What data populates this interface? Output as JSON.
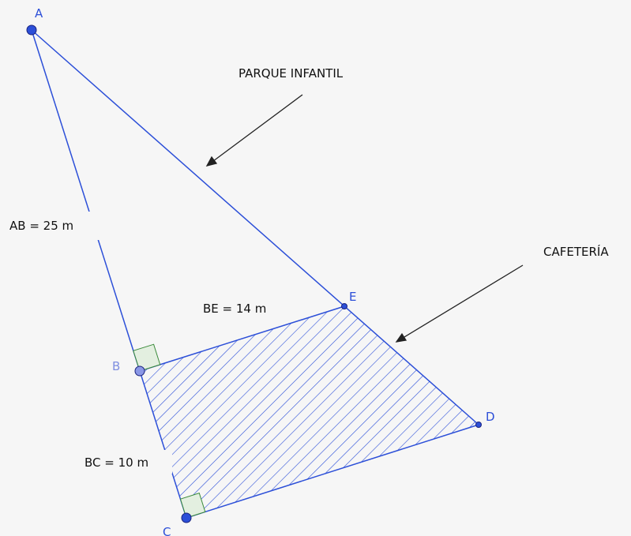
{
  "points": {
    "A": "A",
    "B": "B",
    "C": "C",
    "D": "D",
    "E": "E"
  },
  "measures": {
    "AB": "AB = 25 m",
    "BE": "BE = 14 m",
    "BC": "BC = 10 m"
  },
  "annotations": {
    "playground": "PARQUE INFANTIL",
    "cafeteria": "CAFETERÍA"
  }
}
